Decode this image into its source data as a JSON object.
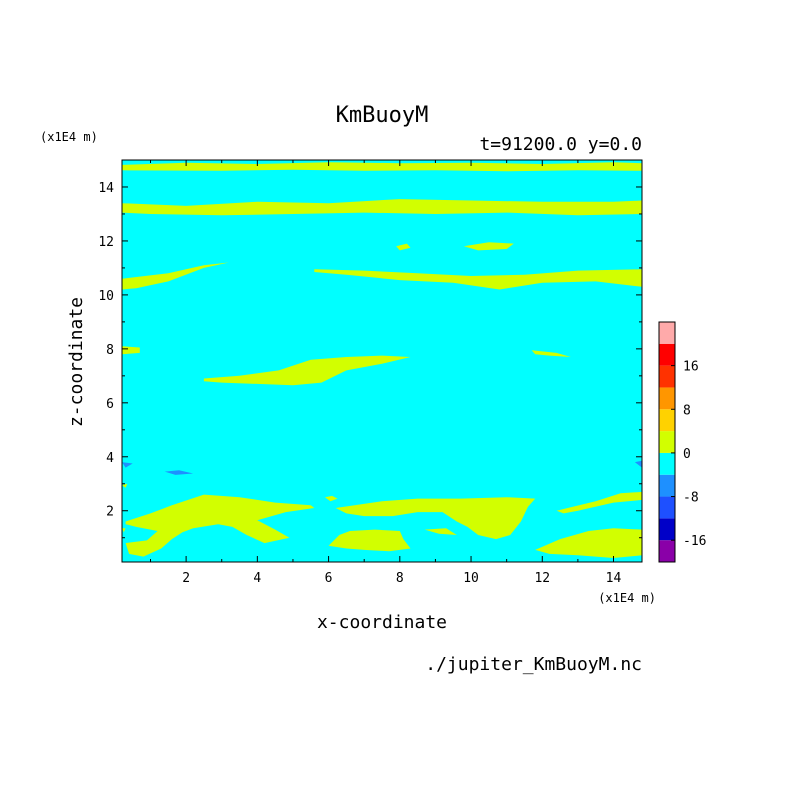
{
  "chart_data": {
    "type": "heatmap",
    "title": "KmBuoyM",
    "subtitle": "t=91200.0 y=0.0",
    "xlabel": "x-coordinate",
    "ylabel": "z-coordinate",
    "x_unit": "(x1E4 m)",
    "y_unit": "(x1E4 m)",
    "xlim": [
      0.2,
      14.8
    ],
    "ylim": [
      0.1,
      15.0
    ],
    "x_ticks": [
      2,
      4,
      6,
      8,
      10,
      12,
      14
    ],
    "y_ticks": [
      2,
      4,
      6,
      8,
      10,
      12,
      14
    ],
    "footer": "./jupiter_KmBuoyM.nc",
    "background_level_color": "#00ffff",
    "colorbar": {
      "levels": [
        {
          "range": [
            -20,
            -16
          ],
          "color": "#8a00a8"
        },
        {
          "range": [
            -16,
            -12
          ],
          "color": "#0000c8"
        },
        {
          "range": [
            -12,
            -8
          ],
          "color": "#1e50ff"
        },
        {
          "range": [
            -8,
            -4
          ],
          "color": "#1e90ff"
        },
        {
          "range": [
            -4,
            0
          ],
          "color": "#00ffff"
        },
        {
          "range": [
            0,
            4
          ],
          "color": "#d2ff00"
        },
        {
          "range": [
            4,
            8
          ],
          "color": "#ffd200"
        },
        {
          "range": [
            8,
            12
          ],
          "color": "#ff9600"
        },
        {
          "range": [
            12,
            16
          ],
          "color": "#ff3200"
        },
        {
          "range": [
            16,
            20
          ],
          "color": "#ff0000"
        },
        {
          "range": [
            20,
            24
          ],
          "color": "#ffaaaa"
        }
      ],
      "tick_labels": [
        "16",
        "8",
        "0",
        "-8",
        "-16"
      ],
      "tick_values": [
        16,
        8,
        0,
        -8,
        -16
      ]
    },
    "regions": [
      {
        "level": 0,
        "pts": [
          [
            0.2,
            14.82
          ],
          [
            2,
            14.9
          ],
          [
            4,
            14.85
          ],
          [
            6,
            14.92
          ],
          [
            8,
            14.88
          ],
          [
            10,
            14.9
          ],
          [
            12,
            14.85
          ],
          [
            14,
            14.92
          ],
          [
            14.8,
            14.88
          ],
          [
            14.8,
            14.6
          ],
          [
            13,
            14.62
          ],
          [
            11,
            14.58
          ],
          [
            9,
            14.62
          ],
          [
            7,
            14.6
          ],
          [
            5,
            14.64
          ],
          [
            3,
            14.6
          ],
          [
            0.2,
            14.62
          ]
        ]
      },
      {
        "level": 0,
        "pts": [
          [
            0.2,
            13.4
          ],
          [
            2,
            13.3
          ],
          [
            4,
            13.45
          ],
          [
            6,
            13.4
          ],
          [
            8,
            13.55
          ],
          [
            10,
            13.5
          ],
          [
            12,
            13.45
          ],
          [
            14,
            13.45
          ],
          [
            14.8,
            13.5
          ],
          [
            14.8,
            13.0
          ],
          [
            13,
            12.95
          ],
          [
            11,
            13.05
          ],
          [
            9,
            13.0
          ],
          [
            7,
            13.05
          ],
          [
            5,
            13.0
          ],
          [
            3,
            12.95
          ],
          [
            1,
            13.0
          ],
          [
            0.2,
            13.05
          ]
        ]
      },
      {
        "level": 0,
        "pts": [
          [
            7.9,
            11.8
          ],
          [
            8.2,
            11.9
          ],
          [
            8.3,
            11.75
          ],
          [
            8,
            11.65
          ]
        ]
      },
      {
        "level": 0,
        "pts": [
          [
            9.8,
            11.8
          ],
          [
            10.5,
            11.95
          ],
          [
            11.2,
            11.9
          ],
          [
            11.0,
            11.7
          ],
          [
            10.2,
            11.65
          ]
        ]
      },
      {
        "level": 0,
        "pts": [
          [
            0.2,
            10.6
          ],
          [
            1.5,
            10.8
          ],
          [
            2.5,
            11.1
          ],
          [
            3.2,
            11.2
          ],
          [
            2.5,
            11.0
          ],
          [
            1.5,
            10.5
          ],
          [
            0.6,
            10.25
          ],
          [
            0.2,
            10.2
          ]
        ]
      },
      {
        "level": 0,
        "pts": [
          [
            5.6,
            10.95
          ],
          [
            7,
            10.9
          ],
          [
            8.5,
            10.8
          ],
          [
            10,
            10.7
          ],
          [
            11.5,
            10.75
          ],
          [
            13,
            10.9
          ],
          [
            14.8,
            10.95
          ],
          [
            14.8,
            10.3
          ],
          [
            13.5,
            10.5
          ],
          [
            12,
            10.45
          ],
          [
            10.8,
            10.2
          ],
          [
            9.5,
            10.45
          ],
          [
            8,
            10.55
          ],
          [
            6.5,
            10.75
          ],
          [
            5.6,
            10.85
          ]
        ]
      },
      {
        "level": 0,
        "pts": [
          [
            0.2,
            8.1
          ],
          [
            0.7,
            8.05
          ],
          [
            0.7,
            7.85
          ],
          [
            0.2,
            7.8
          ]
        ]
      },
      {
        "level": 0,
        "pts": [
          [
            11.7,
            7.95
          ],
          [
            12.4,
            7.85
          ],
          [
            12.8,
            7.7
          ],
          [
            12.2,
            7.75
          ],
          [
            11.8,
            7.8
          ]
        ]
      },
      {
        "level": 0,
        "pts": [
          [
            2.5,
            6.9
          ],
          [
            3.5,
            7.0
          ],
          [
            4.6,
            7.2
          ],
          [
            5.5,
            7.6
          ],
          [
            6.5,
            7.7
          ],
          [
            7.5,
            7.75
          ],
          [
            8.3,
            7.7
          ],
          [
            7.5,
            7.45
          ],
          [
            6.5,
            7.2
          ],
          [
            5.8,
            6.75
          ],
          [
            5,
            6.65
          ],
          [
            4,
            6.7
          ],
          [
            3,
            6.75
          ],
          [
            2.5,
            6.8
          ]
        ]
      },
      {
        "level": -8,
        "pts": [
          [
            1.4,
            3.45
          ],
          [
            1.8,
            3.5
          ],
          [
            2.2,
            3.38
          ],
          [
            1.7,
            3.33
          ]
        ]
      },
      {
        "level": -8,
        "pts": [
          [
            0.2,
            3.8
          ],
          [
            0.5,
            3.75
          ],
          [
            0.3,
            3.6
          ]
        ]
      },
      {
        "level": -8,
        "pts": [
          [
            14.6,
            3.8
          ],
          [
            14.8,
            3.85
          ],
          [
            14.8,
            3.6
          ]
        ]
      },
      {
        "level": 0,
        "pts": [
          [
            0.3,
            1.6
          ],
          [
            1,
            1.9
          ],
          [
            1.6,
            2.2
          ],
          [
            2.5,
            2.6
          ],
          [
            3.5,
            2.5
          ],
          [
            4.5,
            2.3
          ],
          [
            5.5,
            2.2
          ],
          [
            5.6,
            2.1
          ],
          [
            4.8,
            1.95
          ],
          [
            4,
            1.65
          ],
          [
            4.5,
            1.3
          ],
          [
            4.9,
            1.0
          ],
          [
            4.2,
            0.8
          ],
          [
            3.7,
            1.1
          ],
          [
            3.3,
            1.4
          ],
          [
            2.9,
            1.5
          ],
          [
            2.2,
            1.35
          ],
          [
            1.9,
            1.2
          ],
          [
            1.6,
            0.95
          ],
          [
            1.3,
            0.6
          ],
          [
            0.8,
            0.3
          ],
          [
            0.4,
            0.4
          ],
          [
            0.3,
            0.8
          ],
          [
            0.9,
            0.9
          ],
          [
            1.2,
            1.25
          ],
          [
            0.6,
            1.4
          ],
          [
            0.3,
            1.5
          ]
        ]
      },
      {
        "level": 0,
        "pts": [
          [
            5.9,
            2.5
          ],
          [
            6.1,
            2.55
          ],
          [
            6.25,
            2.45
          ],
          [
            6.05,
            2.35
          ]
        ]
      },
      {
        "level": 0,
        "pts": [
          [
            6.2,
            2.1
          ],
          [
            7.5,
            2.35
          ],
          [
            8.5,
            2.45
          ],
          [
            9.7,
            2.45
          ],
          [
            11,
            2.5
          ],
          [
            11.8,
            2.45
          ],
          [
            11.6,
            2.15
          ],
          [
            11.4,
            1.6
          ],
          [
            11.1,
            1.1
          ],
          [
            10.7,
            0.95
          ],
          [
            10.2,
            1.1
          ],
          [
            9.9,
            1.4
          ],
          [
            9.6,
            1.6
          ],
          [
            9.2,
            1.95
          ],
          [
            8.5,
            1.95
          ],
          [
            7.8,
            1.8
          ],
          [
            7.0,
            1.8
          ],
          [
            6.5,
            1.9
          ]
        ]
      },
      {
        "level": 0,
        "pts": [
          [
            6.0,
            0.7
          ],
          [
            6.3,
            1.1
          ],
          [
            6.6,
            1.25
          ],
          [
            7.3,
            1.3
          ],
          [
            8.0,
            1.25
          ],
          [
            8.1,
            0.95
          ],
          [
            8.3,
            0.6
          ],
          [
            7.7,
            0.5
          ],
          [
            7.0,
            0.55
          ],
          [
            6.5,
            0.6
          ]
        ]
      },
      {
        "level": 0,
        "pts": [
          [
            8.7,
            1.3
          ],
          [
            9.3,
            1.35
          ],
          [
            9.6,
            1.1
          ],
          [
            9.1,
            1.15
          ]
        ]
      },
      {
        "level": 0,
        "pts": [
          [
            12.4,
            2.0
          ],
          [
            13.5,
            2.35
          ],
          [
            14.2,
            2.65
          ],
          [
            14.8,
            2.7
          ],
          [
            14.8,
            2.4
          ],
          [
            14.0,
            2.3
          ],
          [
            13.0,
            2.0
          ],
          [
            12.6,
            1.9
          ]
        ]
      },
      {
        "level": 0,
        "pts": [
          [
            11.8,
            0.55
          ],
          [
            12.5,
            0.95
          ],
          [
            13.3,
            1.25
          ],
          [
            14,
            1.35
          ],
          [
            14.8,
            1.3
          ],
          [
            14.8,
            0.35
          ],
          [
            14,
            0.25
          ],
          [
            13,
            0.35
          ],
          [
            12.2,
            0.4
          ]
        ]
      },
      {
        "level": 0,
        "pts": [
          [
            0.2,
            2.95
          ],
          [
            0.35,
            3.0
          ],
          [
            0.3,
            2.85
          ]
        ]
      },
      {
        "level": 0,
        "pts": [
          [
            0.2,
            1.35
          ],
          [
            0.3,
            1.35
          ],
          [
            0.25,
            1.2
          ]
        ]
      }
    ]
  }
}
